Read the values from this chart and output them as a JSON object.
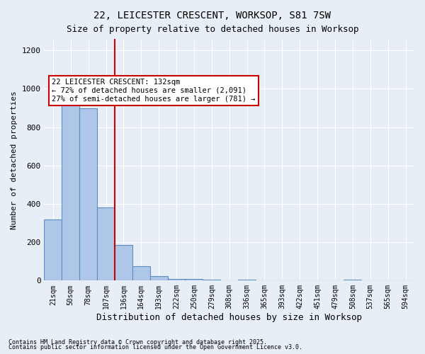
{
  "title1": "22, LEICESTER CRESCENT, WORKSOP, S81 7SW",
  "title2": "Size of property relative to detached houses in Worksop",
  "xlabel": "Distribution of detached houses by size in Worksop",
  "ylabel": "Number of detached properties",
  "bins": [
    "21sqm",
    "50sqm",
    "78sqm",
    "107sqm",
    "136sqm",
    "164sqm",
    "193sqm",
    "222sqm",
    "250sqm",
    "279sqm",
    "308sqm",
    "336sqm",
    "365sqm",
    "393sqm",
    "422sqm",
    "451sqm",
    "479sqm",
    "508sqm",
    "537sqm",
    "565sqm",
    "594sqm"
  ],
  "values": [
    320,
    1000,
    900,
    380,
    185,
    75,
    25,
    10,
    10,
    5,
    0,
    5,
    0,
    0,
    0,
    0,
    0,
    5,
    0,
    0,
    0
  ],
  "bar_color": "#aec6e8",
  "bar_edge_color": "#5a8fc0",
  "highlight_label": "22 LEICESTER CRESCENT: 132sqm",
  "annotation_line1": "← 72% of detached houses are smaller (2,091)",
  "annotation_line2": "27% of semi-detached houses are larger (781) →",
  "annotation_box_color": "#ffffff",
  "annotation_box_edge": "#cc0000",
  "vline_color": "#cc0000",
  "background_color": "#e8eef5",
  "plot_background": "#e8eef5",
  "grid_color": "#ffffff",
  "footnote1": "Contains HM Land Registry data © Crown copyright and database right 2025.",
  "footnote2": "Contains public sector information licensed under the Open Government Licence v3.0.",
  "ylim": [
    0,
    1260
  ],
  "yticks": [
    0,
    200,
    400,
    600,
    800,
    1000,
    1200
  ]
}
